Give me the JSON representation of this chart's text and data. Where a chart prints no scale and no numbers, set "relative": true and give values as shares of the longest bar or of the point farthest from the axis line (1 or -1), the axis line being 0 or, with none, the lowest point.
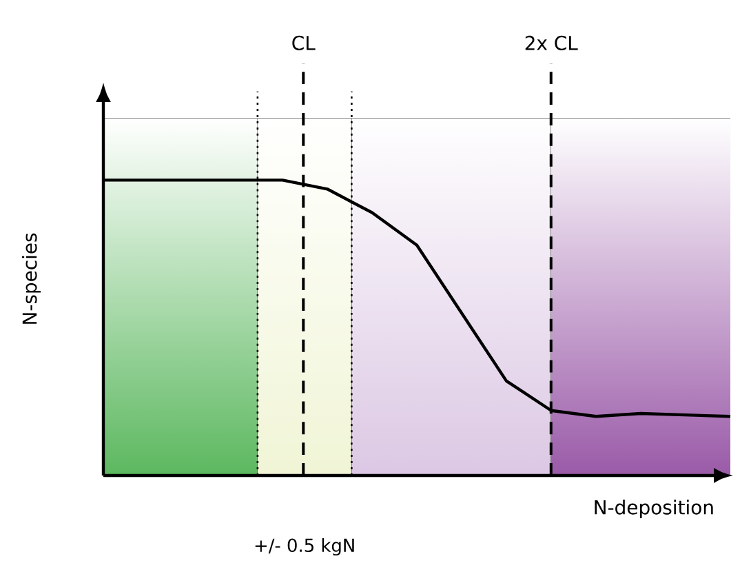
{
  "chart_data": {
    "type": "line",
    "relative": true,
    "xlabel": "N-deposition",
    "ylabel": "N-species",
    "categories": [
      null,
      null,
      null,
      null,
      null,
      null,
      null,
      null,
      null,
      null,
      null,
      null,
      null,
      null,
      null
    ],
    "series": [
      {
        "color": "#000000",
        "values": [
          1,
          1,
          1,
          1,
          1,
          0.97,
          0.89,
          0.78,
          0.55,
          0.32,
          0.22,
          0.2,
          0.21,
          0.205,
          0.2
        ]
      }
    ],
    "annotations": [
      "CL",
      "2x CL",
      "+/- 0.5 kgN"
    ]
  }
}
